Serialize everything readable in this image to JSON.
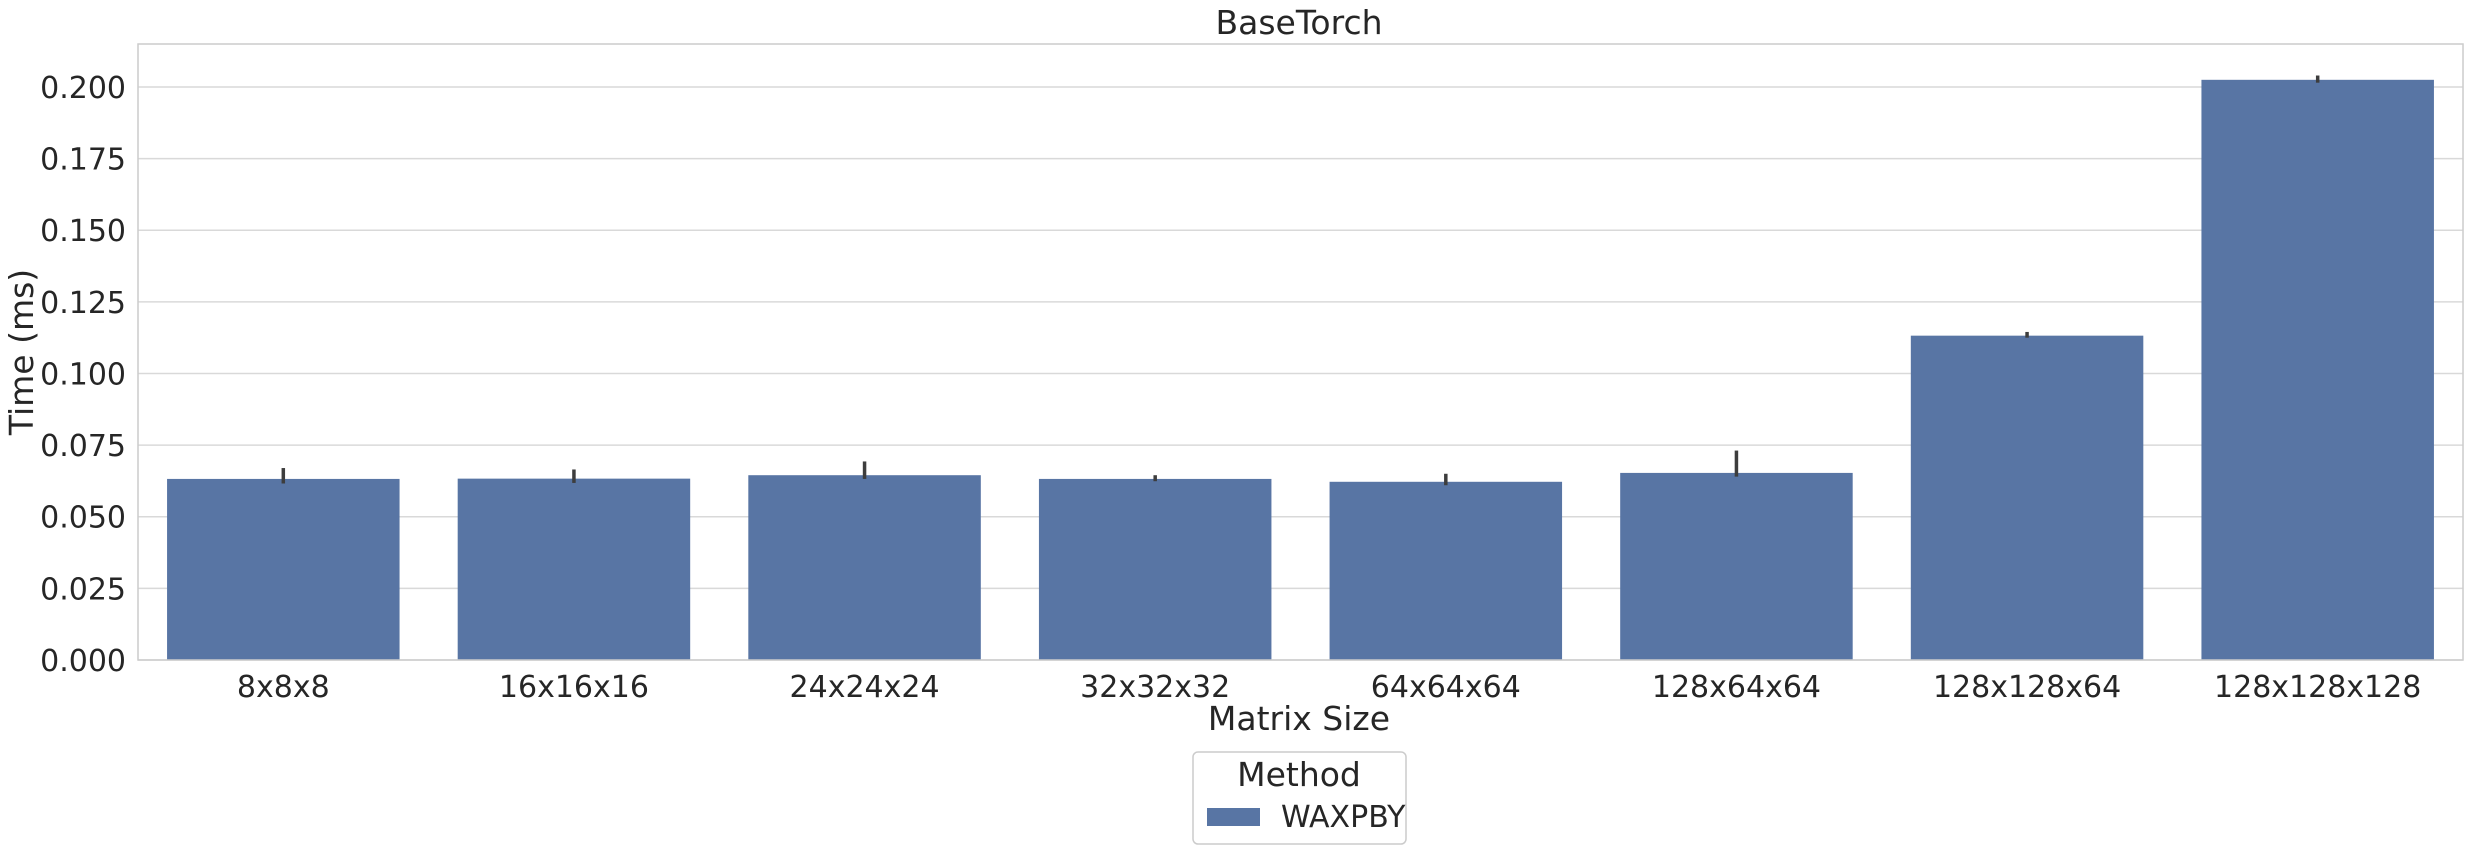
{
  "chart_data": {
    "type": "bar",
    "title": "BaseTorch",
    "xlabel": "Matrix Size",
    "ylabel": "Time (ms)",
    "categories": [
      "8x8x8",
      "16x16x16",
      "24x24x24",
      "32x32x32",
      "64x64x64",
      "128x64x64",
      "128x128x64",
      "128x128x128"
    ],
    "series": [
      {
        "name": "WAXPBY",
        "color": "#5875a4",
        "values": [
          0.0632,
          0.0633,
          0.0645,
          0.0632,
          0.0622,
          0.0653,
          0.1132,
          0.2025
        ],
        "error_low": [
          0.0616,
          0.0618,
          0.0632,
          0.0624,
          0.061,
          0.064,
          0.1125,
          0.2015
        ],
        "error_high": [
          0.067,
          0.0665,
          0.0693,
          0.0645,
          0.065,
          0.0731,
          0.1145,
          0.204
        ]
      }
    ],
    "ylim": [
      0,
      0.215
    ],
    "yticks": [
      0.0,
      0.025,
      0.05,
      0.075,
      0.1,
      0.125,
      0.15,
      0.175,
      0.2
    ],
    "ytick_labels": [
      "0.000",
      "0.025",
      "0.050",
      "0.075",
      "0.100",
      "0.125",
      "0.150",
      "0.175",
      "0.200"
    ],
    "grid": "y",
    "legend": {
      "title": "Method",
      "placement": "bottom-center",
      "entries": [
        "WAXPBY"
      ]
    }
  }
}
